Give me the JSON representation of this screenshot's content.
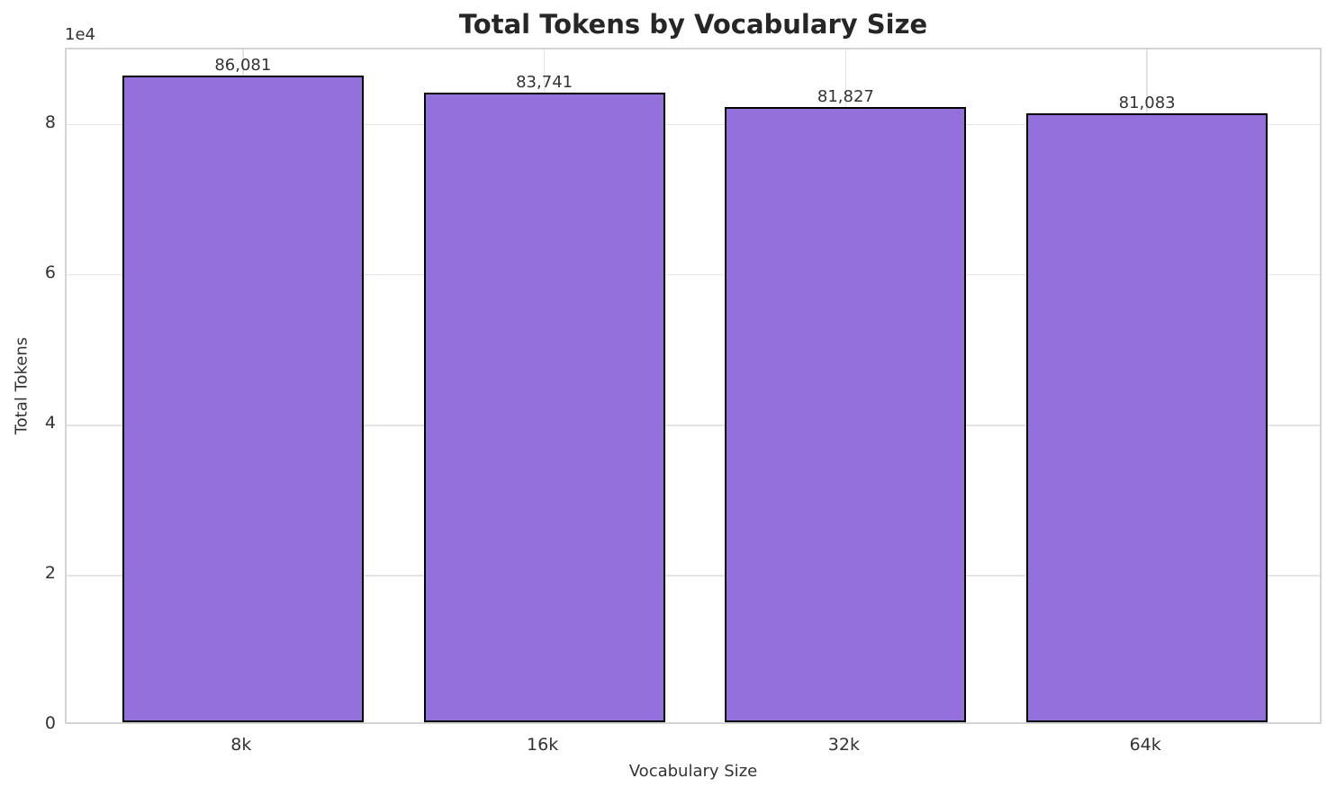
{
  "chart_data": {
    "type": "bar",
    "title": "Total Tokens by Vocabulary Size",
    "xlabel": "Vocabulary Size",
    "ylabel": "Total Tokens",
    "categories": [
      "8k",
      "16k",
      "32k",
      "64k"
    ],
    "values": [
      86081,
      83741,
      81827,
      81083
    ],
    "value_labels": [
      "86,081",
      "83,741",
      "81,827",
      "81,083"
    ],
    "ylim": [
      0,
      90000
    ],
    "yticks": [
      0,
      20000,
      40000,
      60000,
      80000
    ],
    "ytick_labels": [
      "0",
      "2",
      "4",
      "6",
      "8"
    ],
    "y_offset_label": "1e4",
    "grid": true,
    "legend_position": "none",
    "colors": {
      "bar_fill": "#9370DB",
      "bar_edge": "#000000",
      "grid": "#e4e4e4",
      "spine": "#d4d4d4",
      "text": "#333333",
      "title": "#262626",
      "background": "#ffffff"
    }
  }
}
